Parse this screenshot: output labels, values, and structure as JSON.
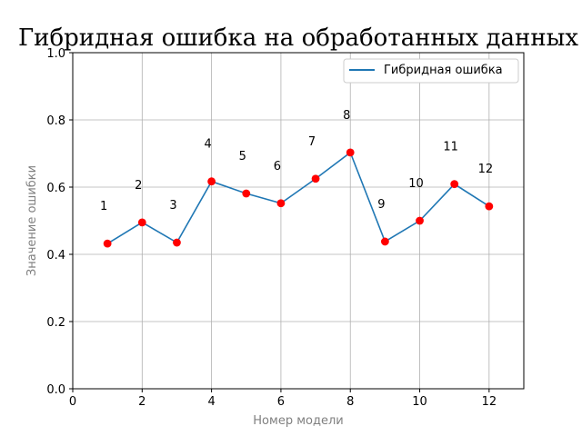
{
  "chart_data": {
    "type": "line",
    "title": "Гибридная ошибка на обработанных данных",
    "xlabel": "Номер модели",
    "ylabel": "Значение ошибки",
    "xlim": [
      0,
      13
    ],
    "ylim": [
      0,
      1.0
    ],
    "x_ticks": [
      "0",
      "2",
      "4",
      "6",
      "8",
      "10",
      "12"
    ],
    "y_ticks": [
      "0.0",
      "0.2",
      "0.4",
      "0.6",
      "0.8",
      "1.0"
    ],
    "grid": true,
    "legend_position": "top-right",
    "series": [
      {
        "name": "Гибридная ошибка",
        "line_color": "#1f77b4",
        "marker_color": "#ff0000",
        "x": [
          1,
          2,
          3,
          4,
          5,
          6,
          7,
          8,
          9,
          10,
          11,
          12
        ],
        "y": [
          0.432,
          0.495,
          0.435,
          0.617,
          0.581,
          0.552,
          0.625,
          0.703,
          0.438,
          0.5,
          0.609,
          0.543
        ]
      }
    ],
    "point_labels": [
      "1",
      "2",
      "3",
      "4",
      "5",
      "6",
      "7",
      "8",
      "9",
      "10",
      "11",
      "12"
    ]
  }
}
